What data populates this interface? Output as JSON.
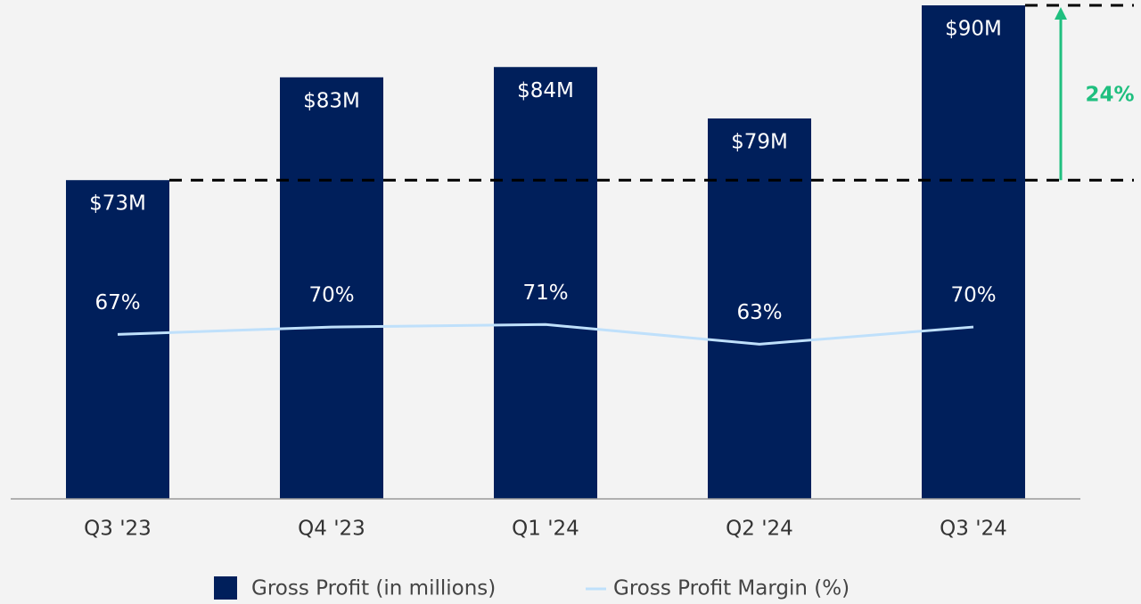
{
  "chart_data": {
    "type": "bar_line",
    "categories": [
      "Q3 '23",
      "Q4 '23",
      "Q1 '24",
      "Q2 '24",
      "Q3 '24"
    ],
    "series": [
      {
        "name": "Gross Profit (in millions)",
        "type": "bar",
        "color": "#001f5b",
        "values": [
          73,
          83,
          84,
          79,
          90
        ],
        "value_labels": [
          "$73M",
          "$83M",
          "$84M",
          "$79M",
          "$90M"
        ]
      },
      {
        "name": "Gross Profit Margin (%)",
        "type": "line",
        "axis": "y2",
        "color": "#bfe0fb",
        "values": [
          67,
          70,
          71,
          63,
          70
        ],
        "value_labels": [
          "67%",
          "70%",
          "71%",
          "63%",
          "70%"
        ]
      }
    ],
    "ylim": [
      42,
      90
    ],
    "y2lim": [
      0,
      201
    ],
    "annotation": "24%",
    "annotation_color": "#1fbf7f"
  }
}
